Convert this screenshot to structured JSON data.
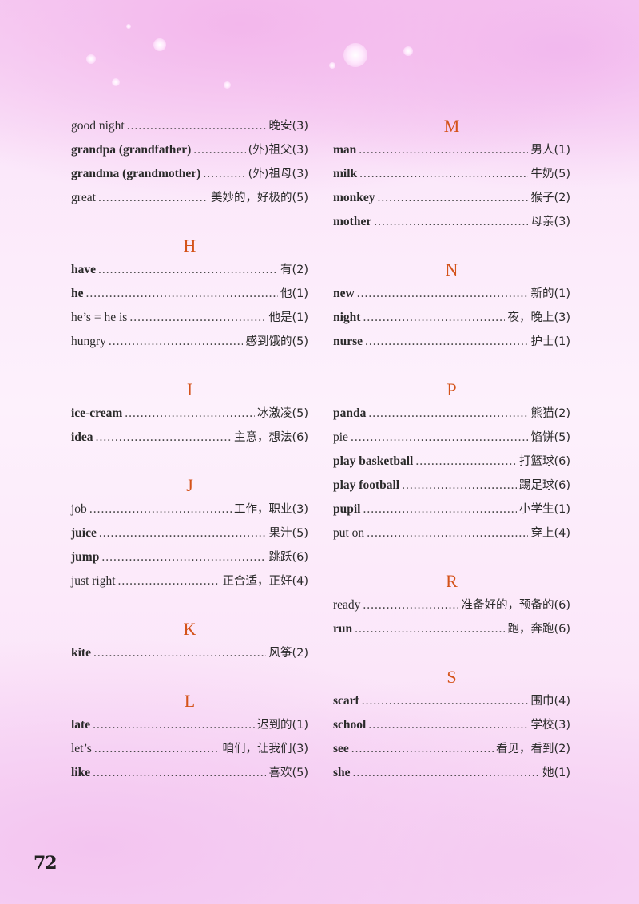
{
  "left_sections": [
    {
      "letter": "",
      "entries": [
        {
          "word": "good night",
          "meaning": "晚安(3)",
          "bold": false
        },
        {
          "word": "grandpa (grandfather)",
          "meaning": "(外)祖父(3)",
          "bold": true
        },
        {
          "word": "grandma (grandmother)",
          "meaning": "(外)祖母(3)",
          "bold": true
        },
        {
          "word": "great",
          "meaning": "美妙的，好极的(5)",
          "bold": false
        }
      ]
    },
    {
      "letter": "H",
      "entries": [
        {
          "word": "have",
          "meaning": "有(2)",
          "bold": true
        },
        {
          "word": "he",
          "meaning": "他(1)",
          "bold": true
        },
        {
          "word": "he’s = he is",
          "meaning": "他是(1)",
          "bold": false
        },
        {
          "word": "hungry",
          "meaning": "感到饿的(5)",
          "bold": false
        }
      ]
    },
    {
      "letter": "I",
      "entries": [
        {
          "word": "ice-cream",
          "meaning": "冰激凌(5)",
          "bold": true
        },
        {
          "word": "idea",
          "meaning": "主意，想法(6)",
          "bold": true
        }
      ]
    },
    {
      "letter": "J",
      "entries": [
        {
          "word": "job",
          "meaning": "工作，职业(3)",
          "bold": false
        },
        {
          "word": "juice",
          "meaning": "果汁(5)",
          "bold": true
        },
        {
          "word": "jump",
          "meaning": "跳跃(6)",
          "bold": true
        },
        {
          "word": "just right",
          "meaning": "正合适，正好(4)",
          "bold": false
        }
      ]
    },
    {
      "letter": "K",
      "entries": [
        {
          "word": "kite",
          "meaning": "风筝(2)",
          "bold": true
        }
      ]
    },
    {
      "letter": "L",
      "entries": [
        {
          "word": "late",
          "meaning": "迟到的(1)",
          "bold": true
        },
        {
          "word": "let’s",
          "meaning": "咱们，让我们(3)",
          "bold": false
        },
        {
          "word": "like",
          "meaning": "喜欢(5)",
          "bold": true
        }
      ]
    }
  ],
  "right_sections": [
    {
      "letter": "M",
      "entries": [
        {
          "word": "man",
          "meaning": "男人(1)",
          "bold": true
        },
        {
          "word": "milk",
          "meaning": "牛奶(5)",
          "bold": true
        },
        {
          "word": "monkey",
          "meaning": "猴子(2)",
          "bold": true
        },
        {
          "word": "mother",
          "meaning": "母亲(3)",
          "bold": true
        }
      ]
    },
    {
      "letter": "N",
      "entries": [
        {
          "word": "new",
          "meaning": "新的(1)",
          "bold": true
        },
        {
          "word": "night",
          "meaning": "夜，晚上(3)",
          "bold": true
        },
        {
          "word": "nurse",
          "meaning": "护士(1)",
          "bold": true
        }
      ]
    },
    {
      "letter": "P",
      "entries": [
        {
          "word": "panda",
          "meaning": "熊猫(2)",
          "bold": true
        },
        {
          "word": "pie",
          "meaning": "馅饼(5)",
          "bold": false
        },
        {
          "word": "play basketball",
          "meaning": "打篮球(6)",
          "bold": true
        },
        {
          "word": "play football",
          "meaning": "踢足球(6)",
          "bold": true
        },
        {
          "word": "pupil",
          "meaning": "小学生(1)",
          "bold": true
        },
        {
          "word": "put on",
          "meaning": "穿上(4)",
          "bold": false
        }
      ]
    },
    {
      "letter": "R",
      "entries": [
        {
          "word": "ready",
          "meaning": "准备好的，预备的(6)",
          "bold": false
        },
        {
          "word": "run",
          "meaning": "跑，奔跑(6)",
          "bold": true
        }
      ]
    },
    {
      "letter": "S",
      "entries": [
        {
          "word": "scarf",
          "meaning": "围巾(4)",
          "bold": true
        },
        {
          "word": "school",
          "meaning": "学校(3)",
          "bold": true
        },
        {
          "word": "see",
          "meaning": "看见，看到(2)",
          "bold": true
        },
        {
          "word": "she",
          "meaning": "她(1)",
          "bold": true
        }
      ]
    }
  ],
  "page_number": "72"
}
